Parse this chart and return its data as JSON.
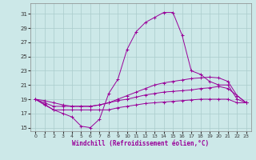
{
  "xlabel": "Windchill (Refroidissement éolien,°C)",
  "xlim": [
    -0.5,
    23.5
  ],
  "ylim": [
    14.5,
    32.5
  ],
  "yticks": [
    15,
    17,
    19,
    21,
    23,
    25,
    27,
    29,
    31
  ],
  "xticks": [
    0,
    1,
    2,
    3,
    4,
    5,
    6,
    7,
    8,
    9,
    10,
    11,
    12,
    13,
    14,
    15,
    16,
    17,
    18,
    19,
    20,
    21,
    22,
    23
  ],
  "background_color": "#cce8e8",
  "grid_color": "#aacccc",
  "line_color": "#990099",
  "curves": [
    {
      "x": [
        0,
        1,
        2,
        3,
        4,
        5,
        6,
        7,
        8,
        9,
        10,
        11,
        12,
        13,
        14,
        15,
        16,
        17,
        18,
        19,
        20,
        21,
        22,
        23
      ],
      "y": [
        19,
        18.2,
        17.5,
        17.5,
        17.5,
        17.5,
        17.5,
        17.5,
        17.5,
        17.8,
        18.0,
        18.2,
        18.4,
        18.5,
        18.6,
        18.7,
        18.8,
        18.9,
        19.0,
        19.0,
        19.0,
        19.0,
        18.5,
        18.5
      ]
    },
    {
      "x": [
        0,
        1,
        2,
        3,
        4,
        5,
        6,
        7,
        8,
        9,
        10,
        11,
        12,
        13,
        14,
        15,
        16,
        17,
        18,
        19,
        20,
        21,
        22,
        23
      ],
      "y": [
        19,
        18.5,
        18.0,
        18.0,
        18.0,
        18.0,
        18.0,
        18.2,
        18.5,
        18.8,
        19.0,
        19.3,
        19.6,
        19.8,
        20.0,
        20.1,
        20.2,
        20.3,
        20.5,
        20.6,
        20.8,
        20.5,
        19.5,
        18.5
      ]
    },
    {
      "x": [
        0,
        1,
        2,
        3,
        4,
        5,
        6,
        7,
        8,
        9,
        10,
        11,
        12,
        13,
        14,
        15,
        16,
        17,
        18,
        19,
        20,
        21,
        22,
        23
      ],
      "y": [
        19,
        18.8,
        18.5,
        18.2,
        18.0,
        18.0,
        18.0,
        18.2,
        18.5,
        19.0,
        19.5,
        20.0,
        20.5,
        21.0,
        21.3,
        21.5,
        21.7,
        21.9,
        22.0,
        22.1,
        22.0,
        21.5,
        19.5,
        18.5
      ]
    },
    {
      "x": [
        0,
        1,
        2,
        3,
        4,
        5,
        6,
        7,
        8,
        9,
        10,
        11,
        12,
        13,
        14,
        15,
        16,
        17,
        18,
        19,
        20,
        21,
        22,
        23
      ],
      "y": [
        19,
        18.3,
        17.5,
        17.0,
        16.5,
        15.2,
        15.0,
        16.2,
        19.8,
        21.8,
        26.0,
        28.5,
        29.8,
        30.5,
        31.2,
        31.2,
        28.0,
        23.0,
        22.5,
        21.5,
        21.0,
        21.0,
        19.0,
        18.5
      ]
    }
  ]
}
